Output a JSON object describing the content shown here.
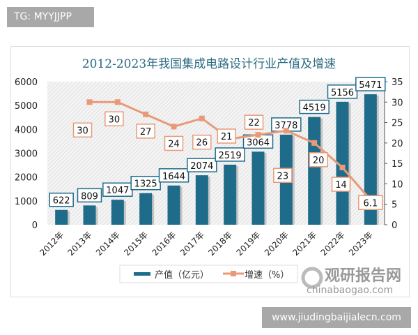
{
  "header": {
    "tag": "TG: MYYJJPP"
  },
  "footer": {
    "url": "www.jiudingbaijialecn.com"
  },
  "watermark": {
    "name": "观研报告网",
    "domain": "chinabaogao.com"
  },
  "colors": {
    "bar": "#1f6b8a",
    "line": "#e89a78",
    "title": "#2a6a80"
  },
  "chart_data": {
    "type": "bar+line",
    "title": "2012-2023年我国集成电路设计行业产值及增速",
    "categories": [
      "2012年",
      "2013年",
      "2014年",
      "2015年",
      "2016年",
      "2017年",
      "2018年",
      "2019年",
      "2020年",
      "2021年",
      "2022年",
      "2023年"
    ],
    "series": [
      {
        "name": "产值（亿元）",
        "type": "bar",
        "axis": "left",
        "values": [
          622,
          809,
          1047,
          1325,
          1644,
          2074,
          2519,
          3064,
          3778,
          4519,
          5156,
          5471
        ]
      },
      {
        "name": "增速（%）",
        "type": "line",
        "axis": "right",
        "values": [
          null,
          30,
          30,
          27,
          24,
          26,
          21,
          22,
          23,
          20,
          14,
          6.1
        ]
      }
    ],
    "left_axis": {
      "ylim": [
        0,
        6000
      ],
      "ticks": [
        0,
        1000,
        2000,
        3000,
        4000,
        5000,
        6000
      ]
    },
    "right_axis": {
      "ylim": [
        0,
        35
      ],
      "ticks": [
        0,
        5,
        10,
        15,
        20,
        25,
        30,
        35
      ]
    },
    "legend": "bottom",
    "grid": false
  }
}
